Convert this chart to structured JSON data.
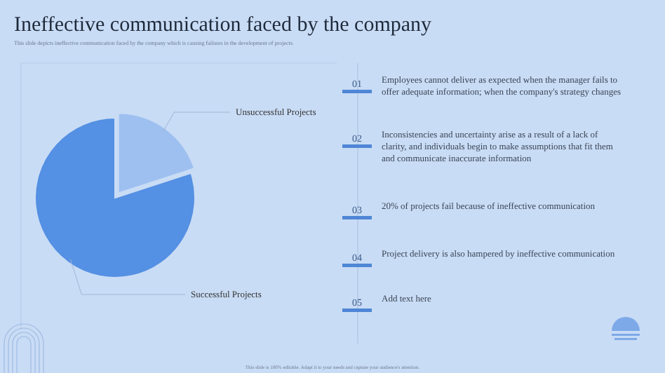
{
  "chart_data": {
    "type": "pie",
    "title": "Ineffective communication  faced by the company",
    "subtitle": "This slide depicts ineffective communication faced by the company which is causing failures in the development of projects.",
    "categories": [
      "Unsuccessful Projects",
      "Successful Projects"
    ],
    "values": [
      20,
      80
    ],
    "colors": [
      "#9dc0f0",
      "#5490e3"
    ],
    "annotations": [
      "01",
      "Employees cannot deliver as expected when the manager fails to offer adequate information; when the company's strategy changes",
      "02",
      "Inconsistencies and uncertainty arise as a result of a lack of clarity, and individuals begin to make assumptions that fit them and communicate inaccurate information",
      "03",
      "20% of projects fail because of ineffective communication",
      "04",
      "Project delivery is also hampered by ineffective communication",
      "05",
      "Add text here",
      "This slide is 100% editable. Adapt it to your needs and capture your audience's attention."
    ]
  }
}
